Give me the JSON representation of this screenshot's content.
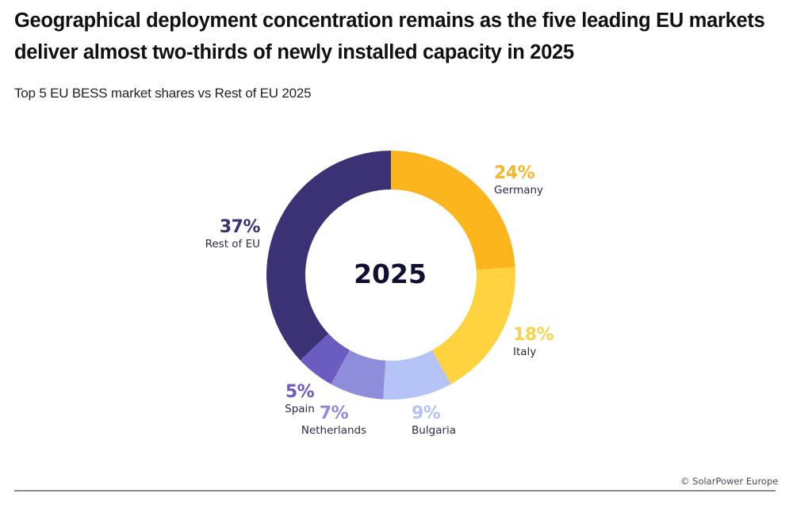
{
  "header": {
    "title": "Geographical deployment concentration remains as the five leading EU markets deliver almost two-thirds of newly installed capacity in 2025",
    "subtitle": "Top 5 EU BESS market shares vs Rest of EU 2025"
  },
  "footer": {
    "credit": "© SolarPower Europe"
  },
  "chart_data": {
    "type": "pie",
    "variant": "donut",
    "title": "Top 5 EU BESS market shares vs Rest of EU 2025",
    "center_label": "2025",
    "unit": "%",
    "start": "top",
    "direction": "clockwise",
    "categories": [
      "Germany",
      "Italy",
      "Bulgaria",
      "Netherlands",
      "Spain",
      "Rest of EU"
    ],
    "values": [
      24,
      18,
      9,
      7,
      5,
      37
    ],
    "labels": [
      "24%",
      "18%",
      "9%",
      "7%",
      "5%",
      "37%"
    ],
    "colors": [
      "#FDB51E",
      "#FFD23F",
      "#B5C3F7",
      "#8E8DDB",
      "#6B5CC1",
      "#3B3275"
    ],
    "label_colors": [
      "#F6B72A",
      "#F8D24D",
      "#B5C3F7",
      "#8E8DDB",
      "#6B5CC1",
      "#3B3275"
    ]
  }
}
